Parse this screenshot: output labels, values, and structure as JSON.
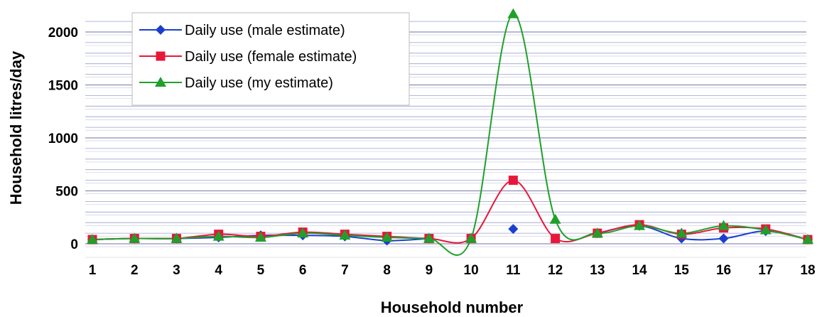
{
  "chart_data": {
    "type": "line",
    "title": "",
    "xlabel": "Household number",
    "ylabel": "Household litres/day",
    "x": [
      1,
      2,
      3,
      4,
      5,
      6,
      7,
      8,
      9,
      10,
      11,
      12,
      13,
      14,
      15,
      16,
      17,
      18
    ],
    "x_tick_labels": [
      "1",
      "2",
      "3",
      "4",
      "5",
      "6",
      "7",
      "8",
      "9",
      "10",
      "11",
      "12",
      "13",
      "14",
      "15",
      "16",
      "17",
      "18"
    ],
    "y_tick_labels": [
      "0",
      "500",
      "1000",
      "1500",
      "2000"
    ],
    "ylim": [
      0,
      2200
    ],
    "yticks": [
      0,
      500,
      1000,
      1500,
      2000
    ],
    "grid": true,
    "legend_position": "top-left",
    "series": [
      {
        "name": "Daily use (male estimate)",
        "color": "#1a3fcf",
        "marker": "diamond",
        "values": [
          40,
          50,
          50,
          60,
          80,
          80,
          70,
          30,
          50,
          null,
          140,
          null,
          100,
          170,
          50,
          50,
          120,
          40
        ]
      },
      {
        "name": "Daily use (female estimate)",
        "color": "#e8173a",
        "marker": "square",
        "values": [
          40,
          50,
          50,
          90,
          70,
          110,
          90,
          70,
          50,
          50,
          600,
          50,
          100,
          180,
          90,
          150,
          140,
          40
        ]
      },
      {
        "name": "Daily use (my estimate)",
        "color": "#1fa02a",
        "marker": "triangle",
        "values": [
          40,
          50,
          50,
          70,
          60,
          100,
          80,
          60,
          50,
          50,
          2170,
          230,
          100,
          170,
          100,
          170,
          130,
          40
        ]
      }
    ]
  }
}
